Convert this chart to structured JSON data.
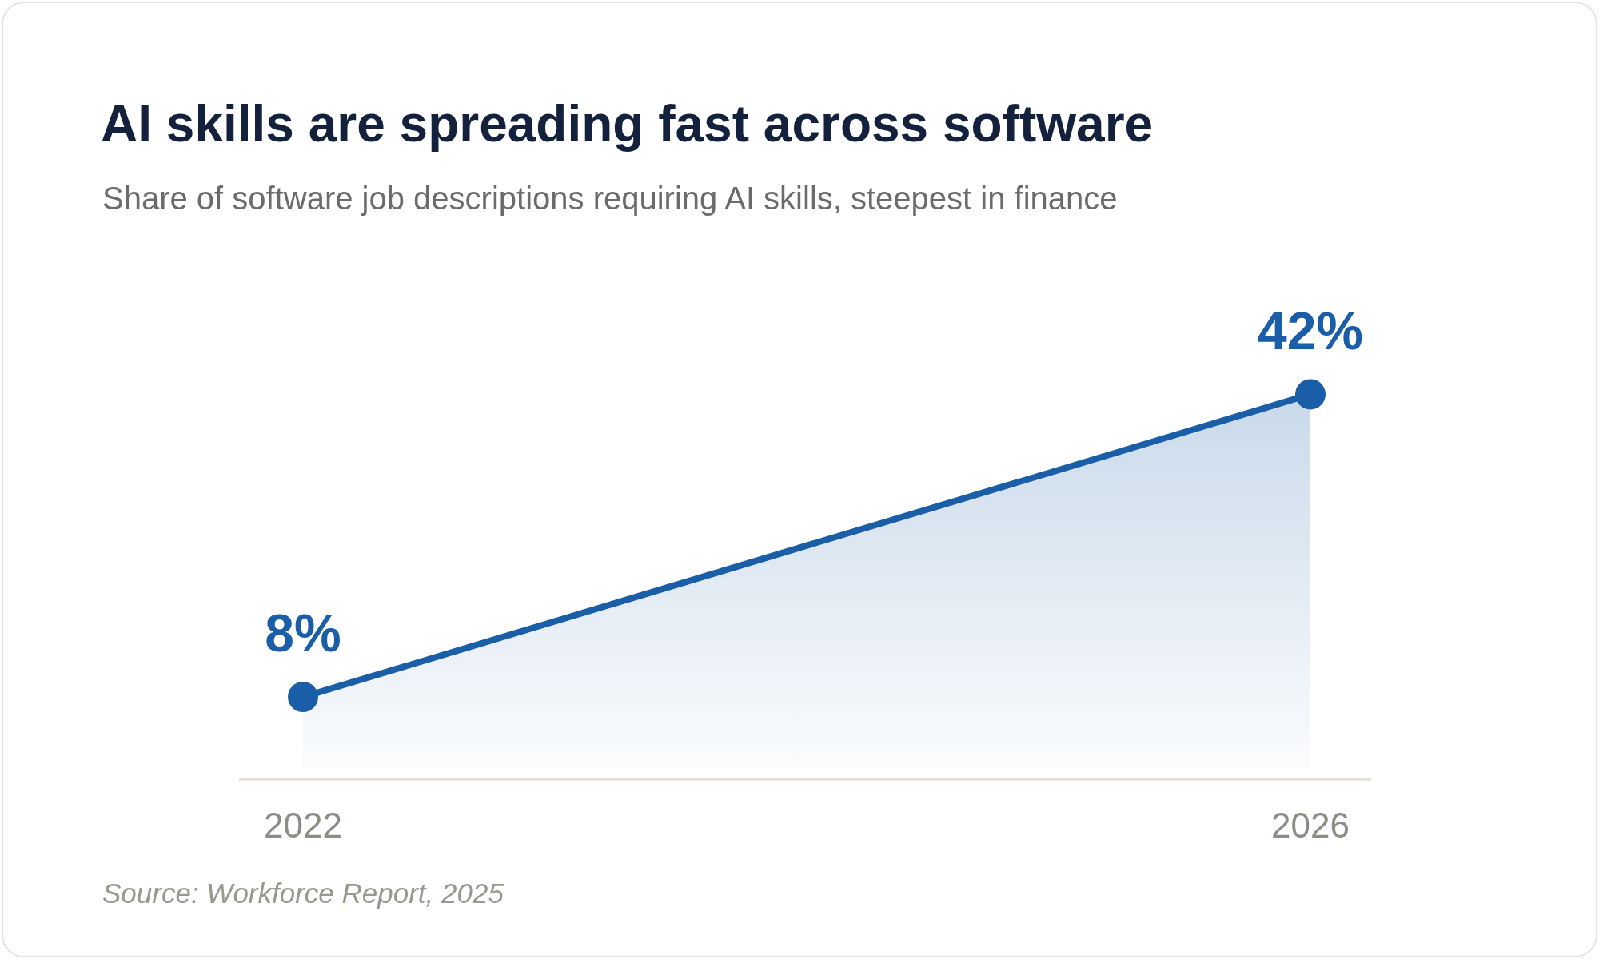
{
  "chart_data": {
    "type": "area",
    "title": "AI skills are spreading fast across software",
    "subtitle": "Share of software job descriptions requiring AI skills, steepest in finance",
    "categories": [
      "2022",
      "2026"
    ],
    "series": [
      {
        "color": "#1a5ea8",
        "values": [
          8,
          42
        ],
        "value_labels": [
          "8%",
          "42%"
        ]
      }
    ],
    "marker": "circle",
    "tick_labels": "x",
    "annotations": [
      "Source: Workforce Report, 2025"
    ]
  }
}
